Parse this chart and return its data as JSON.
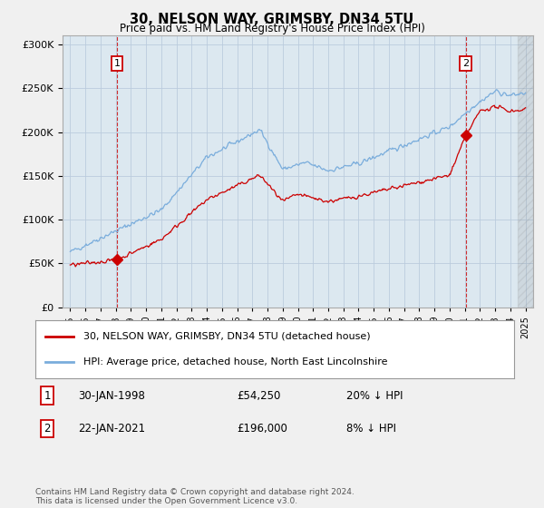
{
  "title": "30, NELSON WAY, GRIMSBY, DN34 5TU",
  "subtitle": "Price paid vs. HM Land Registry's House Price Index (HPI)",
  "legend_line1": "30, NELSON WAY, GRIMSBY, DN34 5TU (detached house)",
  "legend_line2": "HPI: Average price, detached house, North East Lincolnshire",
  "footnote": "Contains HM Land Registry data © Crown copyright and database right 2024.\nThis data is licensed under the Open Government Licence v3.0.",
  "sale1_label": "1",
  "sale1_date": "30-JAN-1998",
  "sale1_price": "£54,250",
  "sale1_hpi": "20% ↓ HPI",
  "sale2_label": "2",
  "sale2_date": "22-JAN-2021",
  "sale2_price": "£196,000",
  "sale2_hpi": "8% ↓ HPI",
  "sale1_year": 1998.08,
  "sale1_value": 54250,
  "sale2_year": 2021.07,
  "sale2_value": 196000,
  "hpi_color": "#7aaddc",
  "price_color": "#cc0000",
  "sale_marker_color": "#cc0000",
  "grid_color": "#bbccdd",
  "plot_bg_color": "#dce8f0",
  "bg_color": "#f0f0f0",
  "ylim": [
    0,
    310000
  ],
  "xlim_start": 1994.5,
  "xlim_end": 2025.5,
  "yticks": [
    0,
    50000,
    100000,
    150000,
    200000,
    250000,
    300000
  ],
  "xticks": [
    1995,
    1996,
    1997,
    1998,
    1999,
    2000,
    2001,
    2002,
    2003,
    2004,
    2005,
    2006,
    2007,
    2008,
    2009,
    2010,
    2011,
    2012,
    2013,
    2014,
    2015,
    2016,
    2017,
    2018,
    2019,
    2020,
    2021,
    2022,
    2023,
    2024,
    2025
  ]
}
